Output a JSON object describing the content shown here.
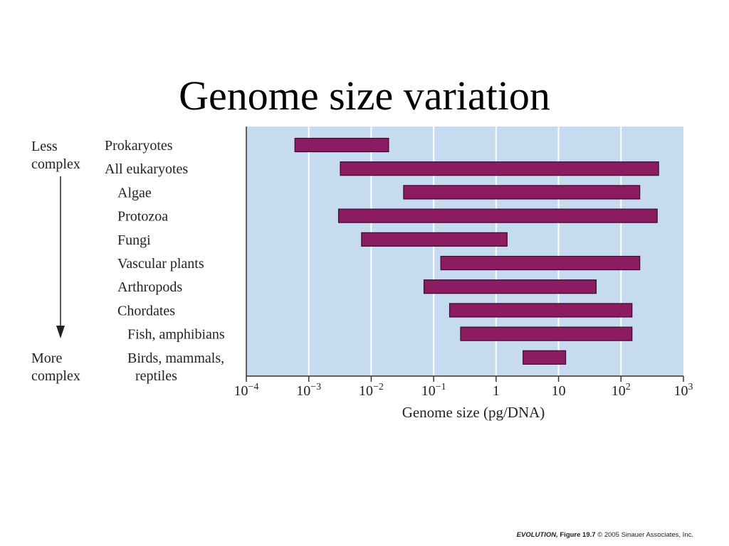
{
  "slide": {
    "title": "Genome size variation",
    "credit_book": "EVOLUTION,",
    "credit_figure": "Figure 19.7",
    "credit_rest": "© 2005 Sinauer Associates, Inc."
  },
  "chart_data": {
    "type": "bar",
    "orientation": "horizontal-range",
    "xlabel": "Genome size (pg/DNA)",
    "xscale": "log",
    "xlim": [
      0.0001,
      1000
    ],
    "xticks": [
      {
        "base": "10",
        "exp": "−4"
      },
      {
        "base": "10",
        "exp": "−3"
      },
      {
        "base": "10",
        "exp": "−2"
      },
      {
        "base": "10",
        "exp": "−1"
      },
      {
        "base": "1",
        "exp": ""
      },
      {
        "base": "10",
        "exp": ""
      },
      {
        "base": "10",
        "exp": "2"
      },
      {
        "base": "10",
        "exp": "3"
      }
    ],
    "grid": true,
    "background_color": "#c6dbf0",
    "bar_color": "#8b1c62",
    "bar_edge_color": "#3a0a2a",
    "complexity_labels": {
      "top": [
        "Less",
        "complex"
      ],
      "bottom": [
        "More",
        "complex"
      ]
    },
    "categories": [
      {
        "label": [
          "Prokaryotes"
        ],
        "indent": 0,
        "min": 0.0006,
        "max": 0.019
      },
      {
        "label": [
          "All eukaryotes"
        ],
        "indent": 0,
        "min": 0.0032,
        "max": 400
      },
      {
        "label": [
          "Algae"
        ],
        "indent": 1,
        "min": 0.033,
        "max": 200
      },
      {
        "label": [
          "Protozoa"
        ],
        "indent": 1,
        "min": 0.003,
        "max": 380
      },
      {
        "label": [
          "Fungi"
        ],
        "indent": 1,
        "min": 0.007,
        "max": 1.5
      },
      {
        "label": [
          "Vascular plants"
        ],
        "indent": 1,
        "min": 0.13,
        "max": 200
      },
      {
        "label": [
          "Arthropods"
        ],
        "indent": 1,
        "min": 0.07,
        "max": 40
      },
      {
        "label": [
          "Chordates"
        ],
        "indent": 1,
        "min": 0.18,
        "max": 150
      },
      {
        "label": [
          "Fish, amphibians"
        ],
        "indent": 2,
        "min": 0.27,
        "max": 150
      },
      {
        "label": [
          "Birds, mammals,",
          "reptiles"
        ],
        "indent": 2,
        "min": 2.7,
        "max": 13
      }
    ]
  }
}
